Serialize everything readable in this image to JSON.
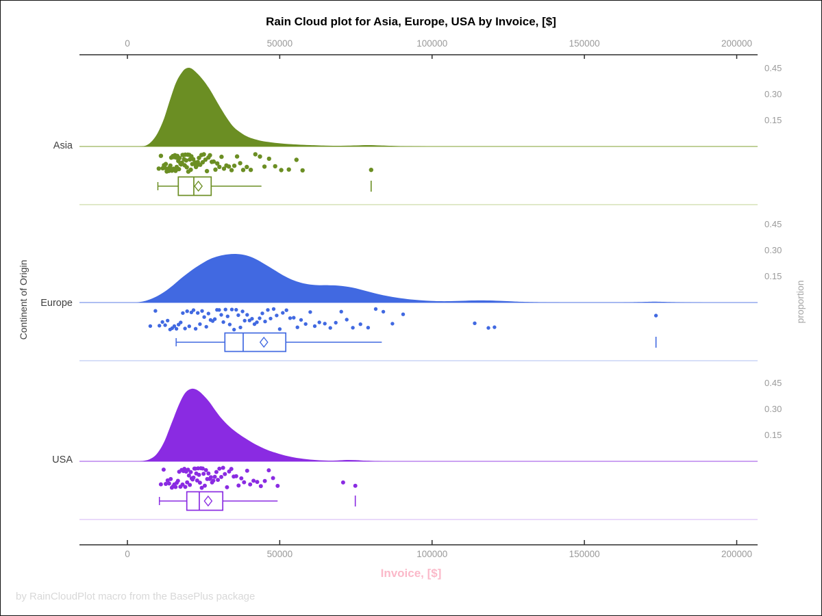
{
  "colors": {
    "title": "#000000",
    "axis": "#2b2b2b",
    "tick_label": "#999999",
    "category_label": "#3f3f3f",
    "y2_label": "#a6a6a6",
    "xlabel_pink": "#fbb9c9",
    "footer": "#d8d8d8"
  },
  "chart_data": {
    "type": "raincloud",
    "title": "Rain Cloud plot for Asia, Europe, USA by Invoice, [$]",
    "xlabel": "Invoice, [$]",
    "ylabel": "Continent of Origin",
    "y2label": "proportion",
    "footer": "by RainCloudPlot macro from the BasePlus package",
    "xlim": [
      0,
      200000
    ],
    "x_ticks": [
      0,
      50000,
      100000,
      150000,
      200000
    ],
    "x_tick_labels": [
      "0",
      "50000",
      "100000",
      "150000",
      "200000"
    ],
    "proportion_ticks": [
      0.45,
      0.3,
      0.15
    ],
    "proportion_tick_labels": [
      "0.45",
      "0.30",
      "0.15"
    ],
    "legend": "none",
    "grid": false,
    "groups": [
      {
        "label": "Asia",
        "color": "#6B8E23",
        "line_color": "#9BB45A",
        "separator_color": "#CEDCA8",
        "box": {
          "whisker_low": 10000,
          "q1": 16700,
          "median": 21800,
          "mean": 23300,
          "q3": 27500,
          "whisker_high": 44000
        },
        "outliers": [
          80000
        ],
        "density": [
          [
            3500,
            0
          ],
          [
            6000,
            0.005
          ],
          [
            8000,
            0.03
          ],
          [
            10000,
            0.08
          ],
          [
            12000,
            0.16
          ],
          [
            14000,
            0.27
          ],
          [
            16000,
            0.37
          ],
          [
            18000,
            0.43
          ],
          [
            19500,
            0.452
          ],
          [
            21000,
            0.45
          ],
          [
            23000,
            0.42
          ],
          [
            25000,
            0.38
          ],
          [
            27000,
            0.33
          ],
          [
            29000,
            0.27
          ],
          [
            31000,
            0.21
          ],
          [
            33000,
            0.155
          ],
          [
            35000,
            0.11
          ],
          [
            37000,
            0.082
          ],
          [
            39000,
            0.06
          ],
          [
            41000,
            0.046
          ],
          [
            44000,
            0.032
          ],
          [
            47000,
            0.024
          ],
          [
            50000,
            0.018
          ],
          [
            53000,
            0.014
          ],
          [
            56000,
            0.011
          ],
          [
            60000,
            0.008
          ],
          [
            65000,
            0.005
          ],
          [
            70000,
            0.004
          ],
          [
            75000,
            0.006
          ],
          [
            79000,
            0.008
          ],
          [
            83000,
            0.006
          ],
          [
            88000,
            0.003
          ],
          [
            95000,
            0.001
          ],
          [
            102000,
            0
          ]
        ],
        "points": [
          10300,
          11000,
          11600,
          12000,
          12300,
          12600,
          12900,
          13100,
          13400,
          13600,
          13900,
          14100,
          14400,
          14600,
          14900,
          15100,
          15300,
          15600,
          15800,
          16000,
          16200,
          16400,
          16700,
          16900,
          17100,
          17400,
          17600,
          17900,
          18100,
          18300,
          18600,
          18800,
          19000,
          19300,
          19500,
          19800,
          20000,
          20300,
          20500,
          20800,
          21000,
          21300,
          21600,
          21900,
          22200,
          22500,
          22800,
          23100,
          23500,
          23900,
          24300,
          24700,
          25100,
          25600,
          26100,
          26600,
          27100,
          27700,
          28300,
          28900,
          29500,
          30200,
          30900,
          31700,
          32500,
          33300,
          34200,
          35100,
          36000,
          37000,
          38000,
          39200,
          40500,
          42000,
          43500,
          45000,
          46500,
          48500,
          50500,
          53000,
          55500,
          57500,
          80000
        ]
      },
      {
        "label": "Europe",
        "color": "#4169E1",
        "line_color": "#7D97E9",
        "separator_color": "#BFCCF4",
        "box": {
          "whisker_low": 16000,
          "q1": 32000,
          "median": 38000,
          "mean": 44800,
          "q3": 52000,
          "whisker_high": 83500
        },
        "outliers": [
          173500
        ],
        "density": [
          [
            3000,
            0
          ],
          [
            6000,
            0.01
          ],
          [
            9000,
            0.03
          ],
          [
            12000,
            0.06
          ],
          [
            15000,
            0.1
          ],
          [
            18000,
            0.145
          ],
          [
            21000,
            0.185
          ],
          [
            24000,
            0.22
          ],
          [
            27000,
            0.25
          ],
          [
            30000,
            0.268
          ],
          [
            33000,
            0.278
          ],
          [
            36000,
            0.28
          ],
          [
            39000,
            0.272
          ],
          [
            42000,
            0.252
          ],
          [
            45000,
            0.222
          ],
          [
            48000,
            0.19
          ],
          [
            51000,
            0.158
          ],
          [
            54000,
            0.132
          ],
          [
            57000,
            0.114
          ],
          [
            60000,
            0.104
          ],
          [
            63000,
            0.1
          ],
          [
            66000,
            0.1
          ],
          [
            69000,
            0.098
          ],
          [
            72000,
            0.092
          ],
          [
            75000,
            0.082
          ],
          [
            78000,
            0.068
          ],
          [
            81000,
            0.054
          ],
          [
            84000,
            0.042
          ],
          [
            87000,
            0.032
          ],
          [
            90000,
            0.024
          ],
          [
            94000,
            0.016
          ],
          [
            98000,
            0.011
          ],
          [
            102000,
            0.008
          ],
          [
            106000,
            0.008
          ],
          [
            110000,
            0.01
          ],
          [
            114000,
            0.012
          ],
          [
            118000,
            0.012
          ],
          [
            122000,
            0.01
          ],
          [
            126000,
            0.007
          ],
          [
            130000,
            0.004
          ],
          [
            136000,
            0.002
          ],
          [
            144000,
            0.001
          ],
          [
            160000,
            0.001
          ],
          [
            168000,
            0.003
          ],
          [
            173000,
            0.005
          ],
          [
            178000,
            0.003
          ],
          [
            184000,
            0.001
          ],
          [
            192000,
            0
          ]
        ],
        "points": [
          7500,
          9200,
          10500,
          11500,
          12400,
          13200,
          14000,
          14700,
          15400,
          16100,
          16800,
          17500,
          18200,
          18900,
          19600,
          20300,
          21000,
          21700,
          22400,
          23100,
          23800,
          24500,
          25200,
          25900,
          26600,
          27300,
          28000,
          28700,
          29400,
          30100,
          30800,
          31500,
          32200,
          32900,
          33600,
          34300,
          35000,
          35700,
          36400,
          37100,
          37800,
          38500,
          39300,
          40100,
          40900,
          41700,
          42500,
          43400,
          44300,
          45200,
          46100,
          47000,
          48000,
          49000,
          50000,
          51000,
          52200,
          53400,
          54600,
          55800,
          57000,
          58500,
          60000,
          61500,
          63000,
          64800,
          66600,
          68400,
          70200,
          72000,
          74000,
          76500,
          79000,
          81500,
          84000,
          87000,
          90500,
          114000,
          118500,
          120500,
          173500
        ]
      },
      {
        "label": "USA",
        "color": "#8A2BE2",
        "line_color": "#AC6BEA",
        "separator_color": "#DCC2F6",
        "box": {
          "whisker_low": 10500,
          "q1": 19500,
          "median": 23600,
          "mean": 26500,
          "q3": 31300,
          "whisker_high": 49300
        },
        "outliers": [
          74800
        ],
        "density": [
          [
            4000,
            0
          ],
          [
            7000,
            0.01
          ],
          [
            9500,
            0.04
          ],
          [
            12000,
            0.11
          ],
          [
            14500,
            0.22
          ],
          [
            17000,
            0.33
          ],
          [
            19000,
            0.395
          ],
          [
            21000,
            0.418
          ],
          [
            23000,
            0.41
          ],
          [
            25000,
            0.38
          ],
          [
            27000,
            0.34
          ],
          [
            29000,
            0.29
          ],
          [
            31000,
            0.245
          ],
          [
            33500,
            0.2
          ],
          [
            36000,
            0.165
          ],
          [
            38500,
            0.135
          ],
          [
            41000,
            0.108
          ],
          [
            43500,
            0.085
          ],
          [
            46000,
            0.065
          ],
          [
            48500,
            0.05
          ],
          [
            51000,
            0.037
          ],
          [
            54000,
            0.025
          ],
          [
            57000,
            0.016
          ],
          [
            60000,
            0.01
          ],
          [
            63000,
            0.006
          ],
          [
            66000,
            0.004
          ],
          [
            69000,
            0.005
          ],
          [
            72000,
            0.008
          ],
          [
            75000,
            0.007
          ],
          [
            78000,
            0.004
          ],
          [
            83000,
            0.001
          ],
          [
            90000,
            0
          ]
        ],
        "points": [
          11000,
          11900,
          12600,
          13200,
          13700,
          14200,
          14600,
          15000,
          15400,
          15800,
          16200,
          16600,
          17000,
          17400,
          17800,
          18100,
          18400,
          18700,
          19000,
          19300,
          19600,
          19900,
          20200,
          20500,
          20800,
          21100,
          21400,
          21700,
          22000,
          22300,
          22600,
          22900,
          23200,
          23500,
          23800,
          24100,
          24400,
          24700,
          25000,
          25400,
          25800,
          26200,
          26600,
          27000,
          27400,
          27800,
          28200,
          28700,
          29200,
          29700,
          30200,
          30800,
          31400,
          32000,
          32700,
          33400,
          34100,
          34900,
          35700,
          36500,
          37400,
          38300,
          39300,
          40300,
          41400,
          42600,
          43800,
          45100,
          46400,
          47800,
          49300,
          70800,
          74800
        ]
      }
    ]
  }
}
